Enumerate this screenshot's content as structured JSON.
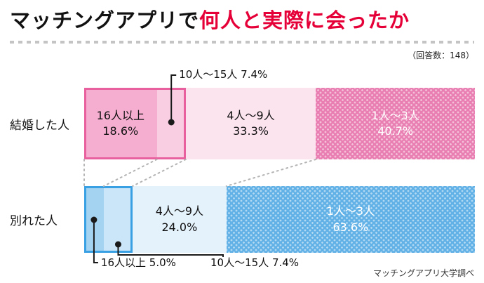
{
  "header": {
    "title_black": "マッチングアプリで",
    "title_red": "何人と実際に会ったか",
    "response_note": "（回答数：148）"
  },
  "source_note": "マッチングアプリ大学調べ",
  "colors": {
    "title_red": "#e50038",
    "text": "#111111",
    "line_black": "#1a1a1a",
    "connector_gray": "#b3b3b3",
    "palettes": {
      "pink": {
        "s1": "#f6aed0",
        "s2": "#f9cde2",
        "s3": "#fce4ef",
        "s4": "#e87eb1",
        "border": "#e8619e"
      },
      "blue": {
        "s1": "#a3d3f1",
        "s2": "#cbe6f8",
        "s3": "#e4f2fc",
        "s4": "#61b1e6",
        "border": "#38a0e3"
      }
    }
  },
  "chart_data": {
    "type": "bar",
    "variant": "horizontal-stacked-percentage",
    "title": "マッチングアプリで何人と実際に会ったか",
    "unit": "%",
    "respondents": 148,
    "categories": [
      "16人以上",
      "10人〜15人",
      "4人〜9人",
      "1人〜3人"
    ],
    "rows": [
      {
        "label": "結婚した人",
        "theme": "pink",
        "segments": [
          {
            "name": "16人以上",
            "value": 18.6,
            "display": "18.6%",
            "label_placement": "inside"
          },
          {
            "name": "10人〜15人",
            "value": 7.4,
            "display": "7.4%",
            "label_placement": "callout-top",
            "callout_text": "10人〜15人 7.4%"
          },
          {
            "name": "4人〜9人",
            "value": 33.3,
            "display": "33.3%",
            "label_placement": "inside"
          },
          {
            "name": "1人〜3人",
            "value": 40.7,
            "display": "40.7%",
            "label_placement": "inside",
            "pattern": "dots"
          }
        ]
      },
      {
        "label": "別れた人",
        "theme": "blue",
        "segments": [
          {
            "name": "16人以上",
            "value": 5.0,
            "display": "5.0%",
            "label_placement": "callout-bottom",
            "callout_text": "16人以上 5.0%"
          },
          {
            "name": "10人〜15人",
            "value": 7.4,
            "display": "7.4%",
            "label_placement": "callout-bottom",
            "callout_text": "10人〜15人 7.4%"
          },
          {
            "name": "4人〜9人",
            "value": 24.0,
            "display": "24.0%",
            "label_placement": "inside"
          },
          {
            "name": "1人〜3人",
            "value": 63.6,
            "display": "63.6%",
            "label_placement": "inside",
            "pattern": "dots"
          }
        ]
      }
    ]
  }
}
